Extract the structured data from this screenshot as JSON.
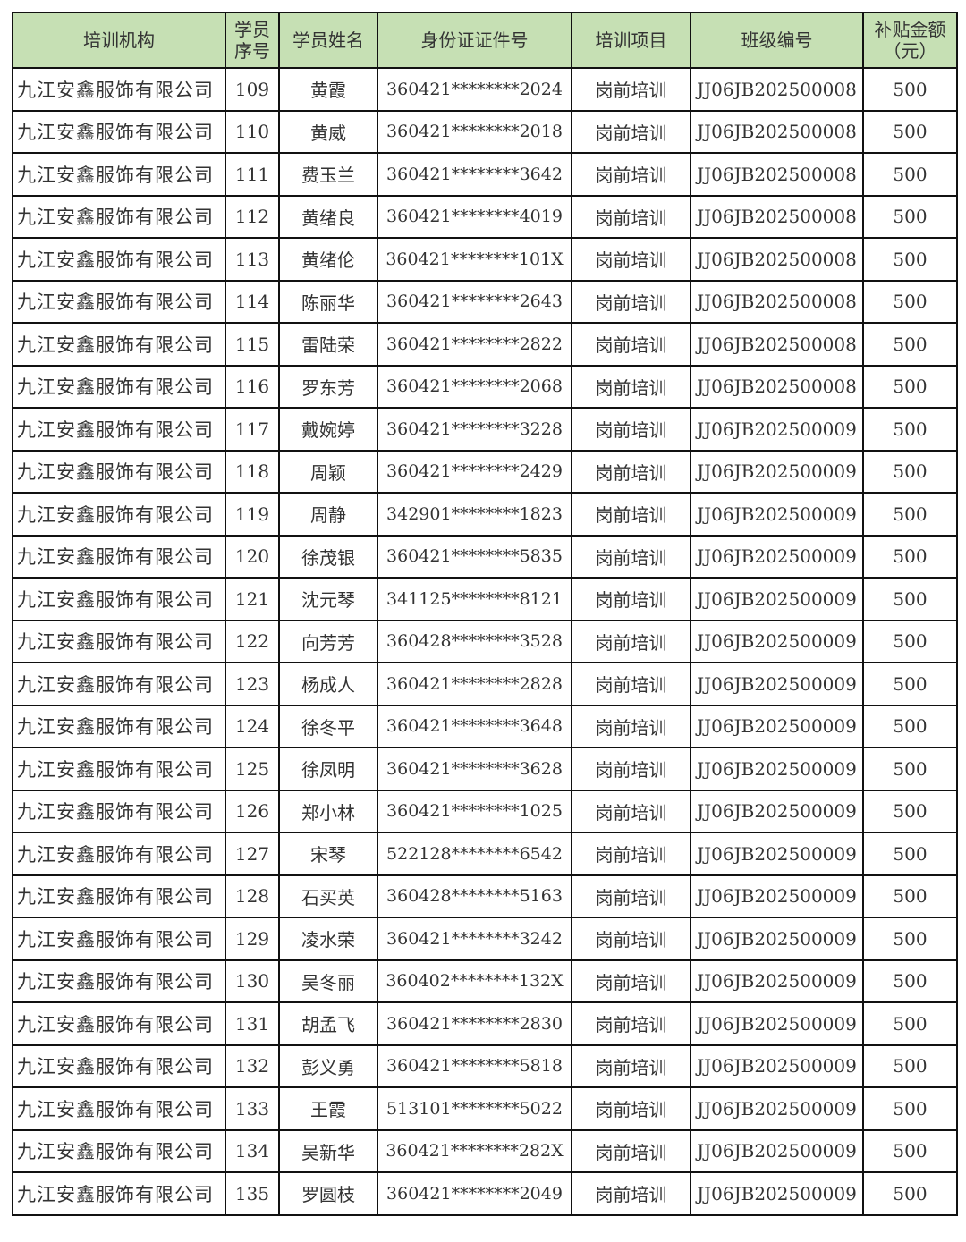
{
  "table": {
    "header_color": "#c6e0b4",
    "headers": [
      "培训机构",
      "学员序号",
      "学员姓名",
      "身份证证件号",
      "培训项目",
      "班级编号",
      "补贴金额（元）"
    ],
    "header_lines": {
      "seq": [
        "学员",
        "序号"
      ],
      "amount": [
        "补贴金额",
        "（元）"
      ]
    },
    "rows": [
      [
        "九江安鑫服饰有限公司",
        "109",
        "黄霞",
        "360421********2024",
        "岗前培训",
        "JJ06JB202500008",
        "500"
      ],
      [
        "九江安鑫服饰有限公司",
        "110",
        "黄威",
        "360421********2018",
        "岗前培训",
        "JJ06JB202500008",
        "500"
      ],
      [
        "九江安鑫服饰有限公司",
        "111",
        "费玉兰",
        "360421********3642",
        "岗前培训",
        "JJ06JB202500008",
        "500"
      ],
      [
        "九江安鑫服饰有限公司",
        "112",
        "黄绪良",
        "360421********4019",
        "岗前培训",
        "JJ06JB202500008",
        "500"
      ],
      [
        "九江安鑫服饰有限公司",
        "113",
        "黄绪伦",
        "360421********101X",
        "岗前培训",
        "JJ06JB202500008",
        "500"
      ],
      [
        "九江安鑫服饰有限公司",
        "114",
        "陈丽华",
        "360421********2643",
        "岗前培训",
        "JJ06JB202500008",
        "500"
      ],
      [
        "九江安鑫服饰有限公司",
        "115",
        "雷陆荣",
        "360421********2822",
        "岗前培训",
        "JJ06JB202500008",
        "500"
      ],
      [
        "九江安鑫服饰有限公司",
        "116",
        "罗东芳",
        "360421********2068",
        "岗前培训",
        "JJ06JB202500008",
        "500"
      ],
      [
        "九江安鑫服饰有限公司",
        "117",
        "戴婉婷",
        "360421********3228",
        "岗前培训",
        "JJ06JB202500009",
        "500"
      ],
      [
        "九江安鑫服饰有限公司",
        "118",
        "周颖",
        "360421********2429",
        "岗前培训",
        "JJ06JB202500009",
        "500"
      ],
      [
        "九江安鑫服饰有限公司",
        "119",
        "周静",
        "342901********1823",
        "岗前培训",
        "JJ06JB202500009",
        "500"
      ],
      [
        "九江安鑫服饰有限公司",
        "120",
        "徐茂银",
        "360421********5835",
        "岗前培训",
        "JJ06JB202500009",
        "500"
      ],
      [
        "九江安鑫服饰有限公司",
        "121",
        "沈元琴",
        "341125********8121",
        "岗前培训",
        "JJ06JB202500009",
        "500"
      ],
      [
        "九江安鑫服饰有限公司",
        "122",
        "向芳芳",
        "360428********3528",
        "岗前培训",
        "JJ06JB202500009",
        "500"
      ],
      [
        "九江安鑫服饰有限公司",
        "123",
        "杨成人",
        "360421********2828",
        "岗前培训",
        "JJ06JB202500009",
        "500"
      ],
      [
        "九江安鑫服饰有限公司",
        "124",
        "徐冬平",
        "360421********3648",
        "岗前培训",
        "JJ06JB202500009",
        "500"
      ],
      [
        "九江安鑫服饰有限公司",
        "125",
        "徐凤明",
        "360421********3628",
        "岗前培训",
        "JJ06JB202500009",
        "500"
      ],
      [
        "九江安鑫服饰有限公司",
        "126",
        "郑小林",
        "360421********1025",
        "岗前培训",
        "JJ06JB202500009",
        "500"
      ],
      [
        "九江安鑫服饰有限公司",
        "127",
        "宋琴",
        "522128********6542",
        "岗前培训",
        "JJ06JB202500009",
        "500"
      ],
      [
        "九江安鑫服饰有限公司",
        "128",
        "石买英",
        "360428********5163",
        "岗前培训",
        "JJ06JB202500009",
        "500"
      ],
      [
        "九江安鑫服饰有限公司",
        "129",
        "凌水荣",
        "360421********3242",
        "岗前培训",
        "JJ06JB202500009",
        "500"
      ],
      [
        "九江安鑫服饰有限公司",
        "130",
        "吴冬丽",
        "360402********132X",
        "岗前培训",
        "JJ06JB202500009",
        "500"
      ],
      [
        "九江安鑫服饰有限公司",
        "131",
        "胡孟飞",
        "360421********2830",
        "岗前培训",
        "JJ06JB202500009",
        "500"
      ],
      [
        "九江安鑫服饰有限公司",
        "132",
        "彭义勇",
        "360421********5818",
        "岗前培训",
        "JJ06JB202500009",
        "500"
      ],
      [
        "九江安鑫服饰有限公司",
        "133",
        "王霞",
        "513101********5022",
        "岗前培训",
        "JJ06JB202500009",
        "500"
      ],
      [
        "九江安鑫服饰有限公司",
        "134",
        "吴新华",
        "360421********282X",
        "岗前培训",
        "JJ06JB202500009",
        "500"
      ],
      [
        "九江安鑫服饰有限公司",
        "135",
        "罗圆枝",
        "360421********2049",
        "岗前培训",
        "JJ06JB202500009",
        "500"
      ]
    ]
  }
}
